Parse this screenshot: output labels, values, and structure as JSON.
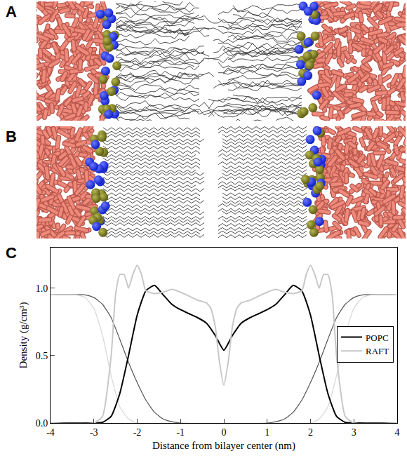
{
  "panel_labels": [
    "A",
    "B",
    "C"
  ],
  "chart_data": {
    "type": "line",
    "x_label": "Distance from bilayer center (nm)",
    "y_label": "Density (g/cm³)",
    "xlim": [
      -4,
      4
    ],
    "xticks": [
      -4,
      -3,
      -2,
      -1,
      0,
      1,
      2,
      3,
      4
    ],
    "ylim": [
      0,
      1.3
    ],
    "yticks": [
      {
        "value": 0,
        "label": "0.0"
      },
      0.5,
      {
        "value": 1,
        "label": "1.0"
      }
    ],
    "grid": false,
    "legend": "right",
    "series": [
      {
        "name": "POPC",
        "color": "#000000",
        "line_style": "solid",
        "x": [
          -4,
          -3,
          -2.8,
          -2.6,
          -2.4,
          -2.2,
          -2,
          -1.8,
          -1.6,
          -1.4,
          -1.2,
          -1,
          -0.8,
          -0.6,
          -0.4,
          -0.2,
          0,
          0.2,
          0.4,
          0.6,
          0.8,
          1,
          1.2,
          1.4,
          1.6,
          1.8,
          2,
          2.2,
          2.4,
          2.6,
          2.8,
          3,
          4
        ],
        "values": [
          0,
          0,
          0.005,
          0.05,
          0.22,
          0.5,
          0.8,
          0.98,
          1.02,
          0.95,
          0.88,
          0.84,
          0.81,
          0.78,
          0.74,
          0.65,
          0.54,
          0.65,
          0.74,
          0.78,
          0.81,
          0.84,
          0.88,
          0.95,
          1.02,
          0.98,
          0.8,
          0.5,
          0.22,
          0.05,
          0.005,
          0,
          0
        ]
      },
      {
        "name": "RAFT",
        "color": "#c8c8c8",
        "line_style": "solid",
        "x": [
          -4,
          -3,
          -2.8,
          -2.6,
          -2.5,
          -2.4,
          -2.3,
          -2.2,
          -2.1,
          -2,
          -1.9,
          -1.8,
          -1.6,
          -1.4,
          -1.2,
          -1,
          -0.8,
          -0.6,
          -0.4,
          -0.3,
          -0.2,
          -0.1,
          0,
          0.1,
          0.2,
          0.3,
          0.4,
          0.6,
          0.8,
          1,
          1.2,
          1.4,
          1.6,
          1.8,
          1.9,
          2,
          2.1,
          2.2,
          2.3,
          2.4,
          2.5,
          2.6,
          2.8,
          3,
          4
        ],
        "values": [
          0,
          0,
          0.05,
          0.5,
          0.95,
          1.1,
          1.1,
          1.0,
          1.1,
          1.17,
          1.1,
          0.98,
          0.96,
          0.97,
          0.99,
          0.97,
          0.94,
          0.91,
          0.89,
          0.85,
          0.72,
          0.45,
          0.28,
          0.45,
          0.72,
          0.85,
          0.89,
          0.91,
          0.94,
          0.97,
          0.99,
          0.97,
          0.96,
          0.98,
          1.1,
          1.17,
          1.1,
          1.0,
          1.1,
          1.1,
          0.95,
          0.5,
          0.05,
          0,
          0
        ]
      },
      {
        "color": "#555555",
        "line_style": "solid",
        "x": [
          -4,
          -3.2,
          -3,
          -2.8,
          -2.6,
          -2.4,
          -2.2,
          -2,
          -1.8,
          -1.6,
          -1.4,
          -1.2,
          -1,
          1,
          1.2,
          1.4,
          1.6,
          1.8,
          2,
          2.2,
          2.4,
          2.6,
          2.8,
          3,
          3.2,
          4
        ],
        "values": [
          0.95,
          0.95,
          0.93,
          0.88,
          0.78,
          0.62,
          0.45,
          0.3,
          0.17,
          0.08,
          0.03,
          0.01,
          0,
          0,
          0.01,
          0.03,
          0.08,
          0.17,
          0.3,
          0.45,
          0.62,
          0.78,
          0.88,
          0.93,
          0.95,
          0.95
        ]
      },
      {
        "color": "#d6d6d6",
        "line_style": "solid",
        "x": [
          -4,
          -3.4,
          -3.2,
          -3,
          -2.8,
          -2.6,
          -2.4,
          -2.2,
          -2,
          2,
          2.2,
          2.4,
          2.6,
          2.8,
          3,
          3.2,
          3.4,
          4
        ],
        "values": [
          0.95,
          0.95,
          0.93,
          0.85,
          0.65,
          0.35,
          0.12,
          0.03,
          0,
          0,
          0.03,
          0.12,
          0.35,
          0.65,
          0.85,
          0.93,
          0.95,
          0.95
        ]
      }
    ]
  }
}
